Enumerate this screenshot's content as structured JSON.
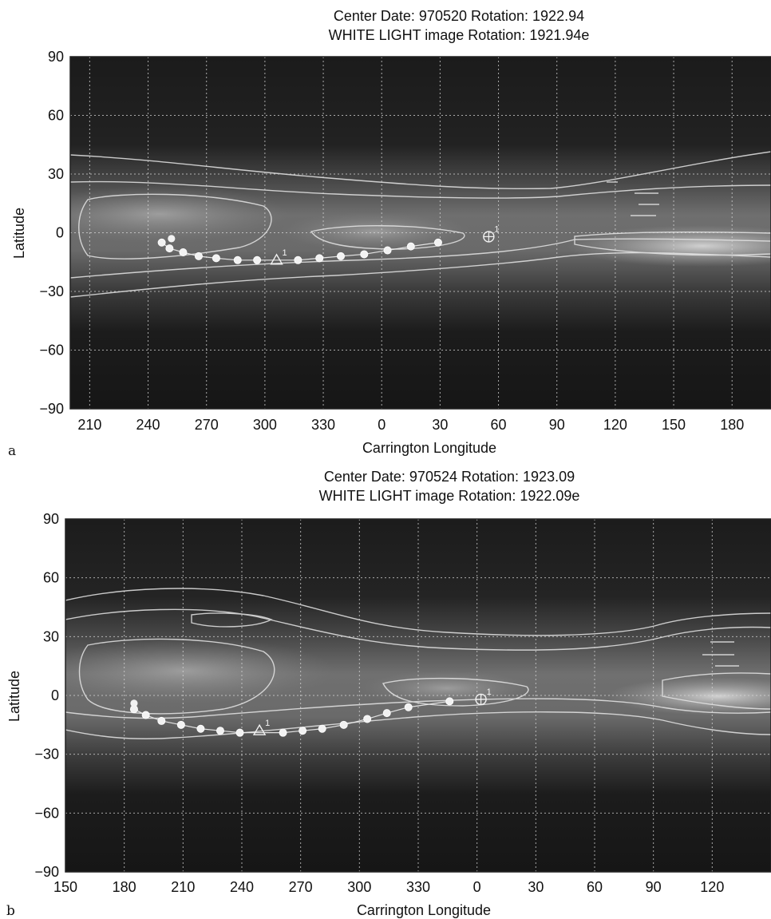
{
  "chart_data": [
    {
      "type": "scatter",
      "panel_label": "a",
      "title": "Center Date: 970520 Rotation: 1922.94",
      "subtitle": "WHITE LIGHT image Rotation: 1921.94e",
      "xlabel": "Carrington Longitude",
      "ylabel": "Latitude",
      "x_ticks": [
        "210",
        "240",
        "270",
        "300",
        "330",
        "0",
        "30",
        "60",
        "90",
        "120",
        "150",
        "180"
      ],
      "x_range": [
        200,
        195
      ],
      "y_ticks": [
        "90",
        "60",
        "30",
        "0",
        "−30",
        "−60",
        "−90"
      ],
      "ylim": [
        -90,
        90
      ],
      "grid": true,
      "background": "grayscale white-light coronal brightness map with brightness contours",
      "series": [
        {
          "marker": "filled-circle",
          "x": [
            247,
            251,
            258,
            266,
            275,
            286,
            296,
            317,
            328,
            339,
            351,
            3,
            15,
            29
          ],
          "y": [
            -5,
            -8,
            -10,
            -12,
            -13,
            -14,
            -14,
            -14,
            -13,
            -12,
            -11,
            -9,
            -7,
            -5
          ]
        }
      ],
      "markers": [
        {
          "symbol": "triangle",
          "x": 306,
          "y": -14,
          "label": "1"
        },
        {
          "symbol": "circle-plus",
          "x": 55,
          "y": -2,
          "label": "1"
        },
        {
          "symbol": "filled-circle",
          "x": 252,
          "y": -3
        }
      ]
    },
    {
      "type": "scatter",
      "panel_label": "b",
      "title": "Center Date: 970524 Rotation: 1923.09",
      "subtitle": "WHITE LIGHT image Rotation: 1922.09e",
      "xlabel": "Carrington Longitude",
      "ylabel": "Latitude",
      "x_ticks": [
        "150",
        "180",
        "210",
        "240",
        "270",
        "300",
        "330",
        "0",
        "30",
        "60",
        "90",
        "120"
      ],
      "x_range": [
        150,
        145
      ],
      "y_ticks": [
        "90",
        "60",
        "30",
        "0",
        "−30",
        "−60",
        "−90"
      ],
      "ylim": [
        -90,
        90
      ],
      "grid": true,
      "background": "grayscale white-light coronal brightness map with brightness contours",
      "series": [
        {
          "marker": "filled-circle",
          "x": [
            185,
            191,
            199,
            209,
            219,
            229,
            239,
            261,
            271,
            281,
            292,
            304,
            314,
            325,
            346
          ],
          "y": [
            -7,
            -10,
            -13,
            -15,
            -17,
            -18,
            -19,
            -19,
            -18,
            -17,
            -15,
            -12,
            -9,
            -6,
            -3
          ]
        }
      ],
      "markers": [
        {
          "symbol": "triangle",
          "x": 249,
          "y": -18,
          "label": "1"
        },
        {
          "symbol": "circle-plus",
          "x": 2,
          "y": -2,
          "label": "1"
        },
        {
          "symbol": "filled-circle",
          "x": 185,
          "y": -4
        }
      ]
    }
  ]
}
